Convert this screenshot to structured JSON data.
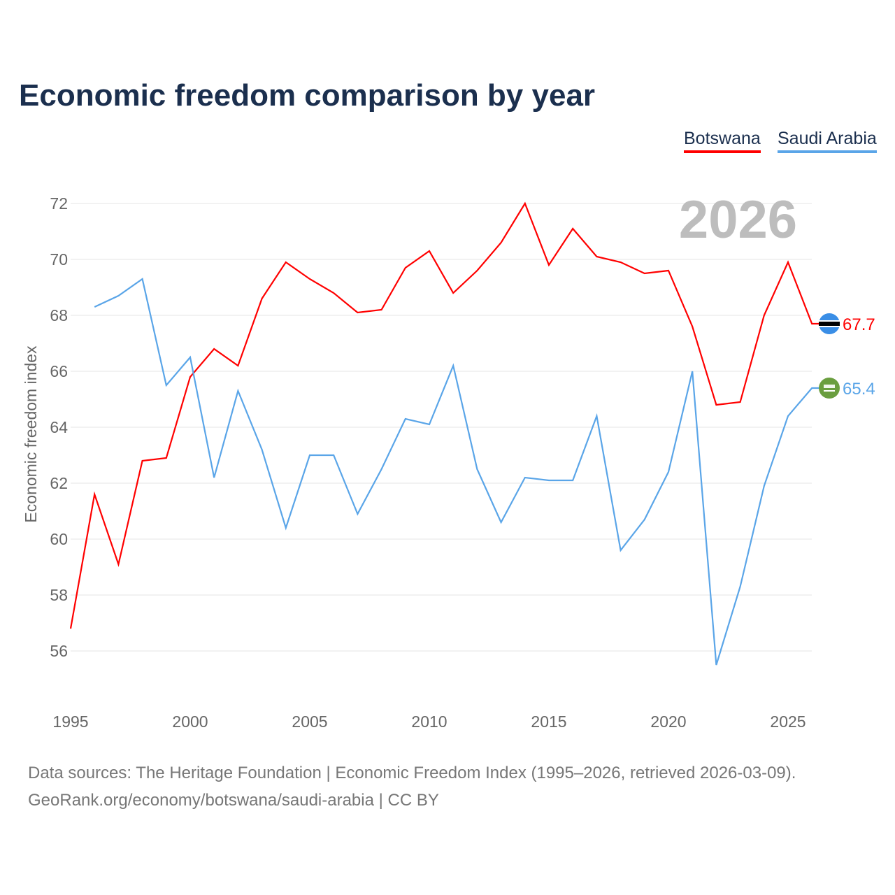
{
  "chart_data": {
    "type": "line",
    "title": "Economic freedom comparison by year",
    "ylabel": "Economic freedom index",
    "xlabel": "",
    "year_watermark": "2026",
    "ylim": [
      54,
      72.5
    ],
    "xlim": [
      1995,
      2026
    ],
    "yticks": [
      56,
      58,
      60,
      62,
      64,
      66,
      68,
      70,
      72
    ],
    "xticks": [
      1995,
      2000,
      2005,
      2010,
      2015,
      2020,
      2025
    ],
    "grid": true,
    "legend_position": "top-right",
    "series": [
      {
        "name": "Botswana",
        "color": "#ff0000",
        "end_label": "67.7",
        "start_year": 1995,
        "values": [
          56.8,
          61.6,
          59.1,
          62.8,
          62.9,
          65.8,
          66.8,
          66.2,
          68.6,
          69.9,
          69.3,
          68.8,
          68.1,
          68.2,
          69.7,
          70.3,
          68.8,
          69.6,
          70.6,
          72.0,
          69.8,
          71.1,
          70.1,
          69.9,
          69.5,
          69.6,
          67.6,
          64.8,
          64.9,
          68.0,
          69.9,
          67.7
        ]
      },
      {
        "name": "Saudi Arabia",
        "color": "#5aa5e8",
        "end_label": "65.4",
        "start_year": 1996,
        "values": [
          68.3,
          68.7,
          69.3,
          65.5,
          66.5,
          62.2,
          65.3,
          63.2,
          60.4,
          63.0,
          63.0,
          60.9,
          62.5,
          64.3,
          64.1,
          66.2,
          62.5,
          60.6,
          62.2,
          62.1,
          62.1,
          64.4,
          59.6,
          60.7,
          62.4,
          66.0,
          55.5,
          58.3,
          61.9,
          64.4,
          65.4
        ]
      }
    ]
  },
  "legend": {
    "botswana": "Botswana",
    "saudi": "Saudi Arabia"
  },
  "source": {
    "line1": "Data sources: The Heritage Foundation | Economic Freedom Index (1995–2026, retrieved 2026-03-09).",
    "line2": "GeoRank.org/economy/botswana/saudi-arabia | CC BY"
  }
}
